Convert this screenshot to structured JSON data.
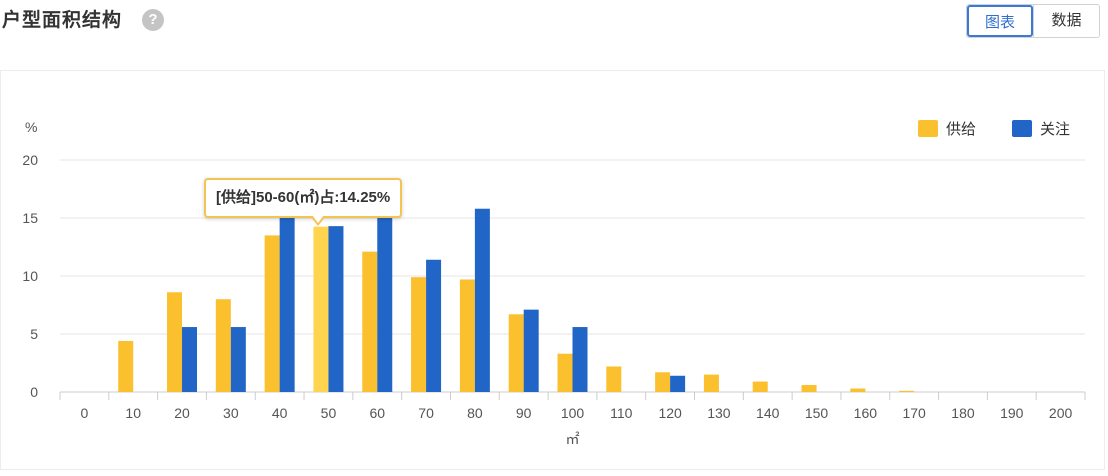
{
  "header": {
    "title": "户型面积结构",
    "help_icon": "?",
    "toggle": {
      "chart_label": "图表",
      "data_label": "数据",
      "active": "chart"
    }
  },
  "tooltip": {
    "text": "[供给]50-60(㎡)占:14.25%"
  },
  "colors": {
    "supply": "#fbc02d",
    "supply_highlight": "#ffd54f",
    "attention": "#2166c7",
    "grid": "#e6e6e6",
    "axis_text": "#555555"
  },
  "chart_data": {
    "type": "bar",
    "y_unit_label": "%",
    "xlabel": "㎡",
    "ylim": [
      0,
      20
    ],
    "y_ticks": [
      0,
      5,
      10,
      15,
      20
    ],
    "grid": true,
    "legend_position": "top-right",
    "categories": [
      "0",
      "10",
      "20",
      "30",
      "40",
      "50",
      "60",
      "70",
      "80",
      "90",
      "100",
      "110",
      "120",
      "130",
      "140",
      "150",
      "160",
      "170",
      "180",
      "190",
      "200"
    ],
    "series": [
      {
        "name": "供给",
        "values": [
          0,
          4.4,
          8.6,
          8.0,
          13.5,
          14.25,
          12.1,
          9.9,
          9.7,
          6.7,
          3.3,
          2.2,
          1.7,
          1.5,
          0.9,
          0.6,
          0.3,
          0.1,
          0,
          0,
          0
        ]
      },
      {
        "name": "关注",
        "values": [
          0,
          0,
          5.6,
          5.6,
          15.8,
          14.3,
          15.8,
          11.4,
          15.8,
          7.1,
          5.6,
          0,
          1.4,
          0,
          0,
          0,
          0,
          0,
          0,
          0,
          0
        ]
      }
    ],
    "highlight": {
      "series": 0,
      "category": 5
    }
  }
}
